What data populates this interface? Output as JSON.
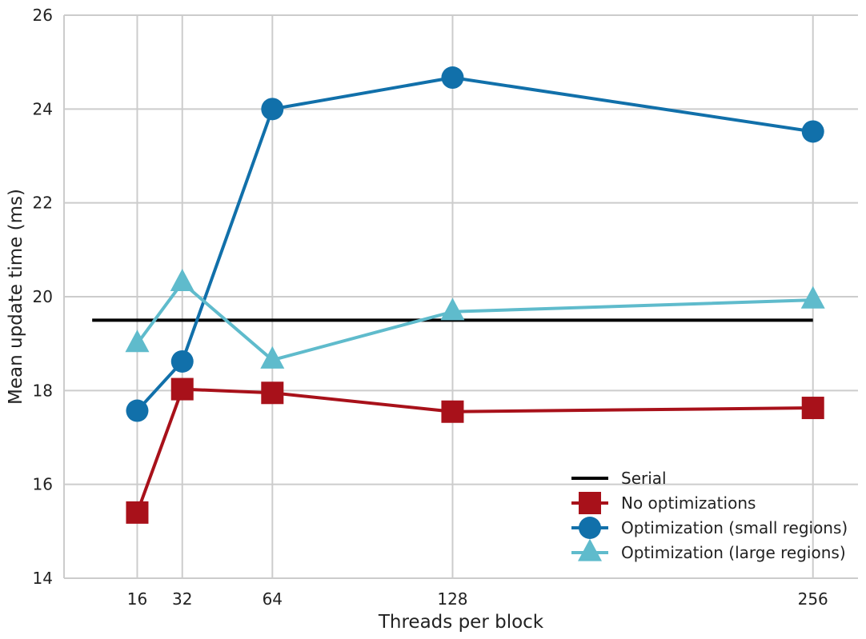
{
  "chart_data": {
    "type": "line",
    "title": "",
    "xlabel": "Threads per block",
    "ylabel": "Mean update time (ms)",
    "x": [
      16,
      32,
      64,
      128,
      256
    ],
    "xticks": [
      "16",
      "32",
      "64",
      "128",
      "256"
    ],
    "xlim": [
      -10,
      272
    ],
    "ylim": [
      14,
      26
    ],
    "yticks": [
      14,
      16,
      18,
      20,
      22,
      24,
      26
    ],
    "grid": true,
    "legend_position": "bottom-right",
    "series": [
      {
        "name": "Serial",
        "color": "#000000",
        "marker": "none",
        "x": [
          0,
          256
        ],
        "values": [
          19.5,
          19.5
        ]
      },
      {
        "name": "No optimizations",
        "color": "#a8111a",
        "marker": "square",
        "x": [
          16,
          32,
          64,
          128,
          256
        ],
        "values": [
          15.4,
          18.03,
          17.95,
          17.55,
          17.63
        ]
      },
      {
        "name": "Optimization (small regions)",
        "color": "#1170aa",
        "marker": "circle",
        "x": [
          16,
          32,
          64,
          128,
          256
        ],
        "values": [
          17.57,
          18.62,
          24.0,
          24.67,
          23.52
        ]
      },
      {
        "name": "Optimization (large regions)",
        "color": "#5fbbcc",
        "marker": "triangle",
        "x": [
          16,
          32,
          64,
          128,
          256
        ],
        "values": [
          19.0,
          20.3,
          18.65,
          19.68,
          19.93
        ]
      }
    ]
  }
}
